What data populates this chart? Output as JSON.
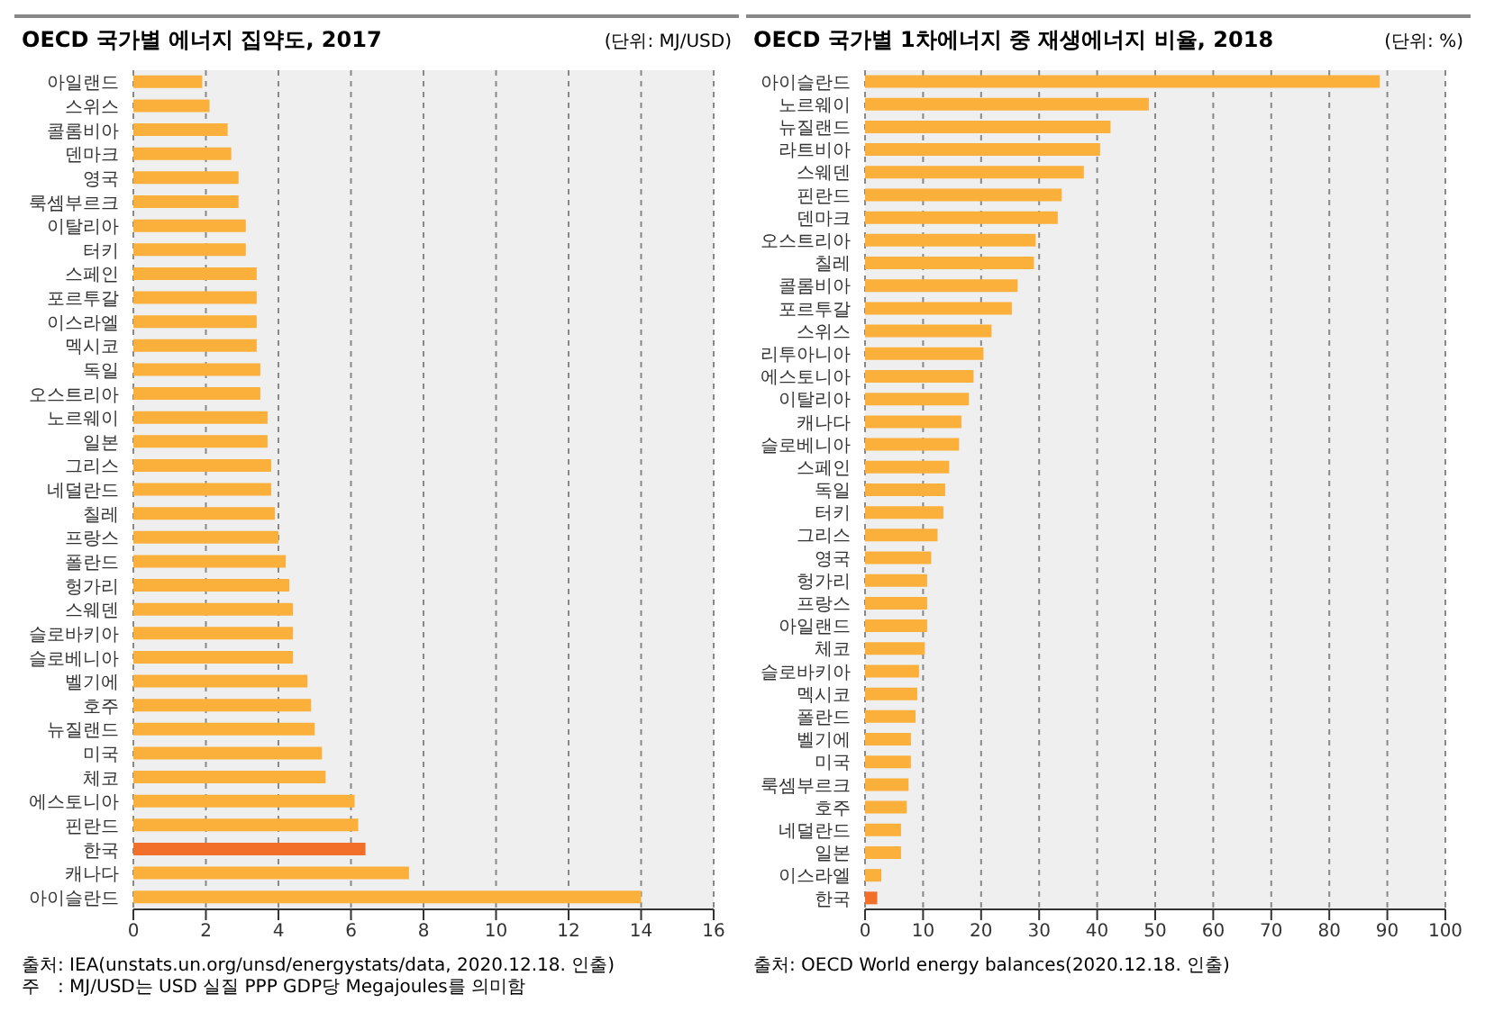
{
  "chart_data": [
    {
      "type": "bar",
      "orientation": "horizontal",
      "title": "OECD 국가별 에너지 집약도, 2017",
      "subtitle": "(단위: MJ/USD)",
      "categories": [
        "아일랜드",
        "스위스",
        "콜롬비아",
        "덴마크",
        "영국",
        "룩셈부르크",
        "이탈리아",
        "터키",
        "스페인",
        "포르투갈",
        "이스라엘",
        "멕시코",
        "독일",
        "오스트리아",
        "노르웨이",
        "일본",
        "그리스",
        "네덜란드",
        "칠레",
        "프랑스",
        "폴란드",
        "헝가리",
        "스웨덴",
        "슬로바키아",
        "슬로베니아",
        "벨기에",
        "호주",
        "뉴질랜드",
        "미국",
        "체코",
        "에스토니아",
        "핀란드",
        "한국",
        "캐나다",
        "아이슬란드"
      ],
      "values": [
        1.9,
        2.1,
        2.6,
        2.7,
        2.9,
        2.9,
        3.1,
        3.1,
        3.4,
        3.4,
        3.4,
        3.4,
        3.5,
        3.5,
        3.7,
        3.7,
        3.8,
        3.8,
        3.9,
        4.0,
        4.2,
        4.3,
        4.4,
        4.4,
        4.4,
        4.8,
        4.9,
        5.0,
        5.2,
        5.3,
        6.1,
        6.2,
        6.4,
        7.6,
        14.0
      ],
      "colors": [
        "#fbb03b",
        "#fbb03b",
        "#fbb03b",
        "#fbb03b",
        "#fbb03b",
        "#fbb03b",
        "#fbb03b",
        "#fbb03b",
        "#fbb03b",
        "#fbb03b",
        "#fbb03b",
        "#fbb03b",
        "#fbb03b",
        "#fbb03b",
        "#fbb03b",
        "#fbb03b",
        "#fbb03b",
        "#fbb03b",
        "#fbb03b",
        "#fbb03b",
        "#fbb03b",
        "#fbb03b",
        "#fbb03b",
        "#fbb03b",
        "#fbb03b",
        "#fbb03b",
        "#fbb03b",
        "#fbb03b",
        "#fbb03b",
        "#fbb03b",
        "#fbb03b",
        "#fbb03b",
        "#f26f2a",
        "#fbb03b",
        "#fbb03b"
      ],
      "xlim": [
        0,
        16
      ],
      "xticks": [
        0,
        2,
        4,
        6,
        8,
        10,
        12,
        14,
        16
      ],
      "grid": "x",
      "legend": false,
      "annotations": [
        "출처: IEA(unstats.un.org/unsd/energystats/data, 2020.12.18. 인출)",
        "주　: MJ/USD는 USD 실질 PPP GDP당 Megajoules를 의미함"
      ]
    },
    {
      "type": "bar",
      "orientation": "horizontal",
      "title": "OECD 국가별 1차에너지 중 재생에너지 비율, 2018",
      "subtitle": "(단위: %)",
      "categories": [
        "아이슬란드",
        "노르웨이",
        "뉴질랜드",
        "라트비아",
        "스웨덴",
        "핀란드",
        "덴마크",
        "오스트리아",
        "칠레",
        "콜롬비아",
        "포르투갈",
        "스위스",
        "리투아니아",
        "에스토니아",
        "이탈리아",
        "캐나다",
        "슬로베니아",
        "스페인",
        "독일",
        "터키",
        "그리스",
        "영국",
        "헝가리",
        "프랑스",
        "아일랜드",
        "체코",
        "슬로바키아",
        "멕시코",
        "폴란드",
        "벨기에",
        "미국",
        "룩셈부르크",
        "호주",
        "네덜란드",
        "일본",
        "이스라엘",
        "한국"
      ],
      "values": [
        88.7,
        48.9,
        42.3,
        40.5,
        37.7,
        33.9,
        33.2,
        29.4,
        29.1,
        26.3,
        25.3,
        21.8,
        20.4,
        18.7,
        17.9,
        16.6,
        16.2,
        14.5,
        13.8,
        13.5,
        12.5,
        11.4,
        10.7,
        10.7,
        10.7,
        10.3,
        9.3,
        9.0,
        8.7,
        7.9,
        7.9,
        7.5,
        7.2,
        6.2,
        6.2,
        2.8,
        2.1
      ],
      "colors": [
        "#fbb03b",
        "#fbb03b",
        "#fbb03b",
        "#fbb03b",
        "#fbb03b",
        "#fbb03b",
        "#fbb03b",
        "#fbb03b",
        "#fbb03b",
        "#fbb03b",
        "#fbb03b",
        "#fbb03b",
        "#fbb03b",
        "#fbb03b",
        "#fbb03b",
        "#fbb03b",
        "#fbb03b",
        "#fbb03b",
        "#fbb03b",
        "#fbb03b",
        "#fbb03b",
        "#fbb03b",
        "#fbb03b",
        "#fbb03b",
        "#fbb03b",
        "#fbb03b",
        "#fbb03b",
        "#fbb03b",
        "#fbb03b",
        "#fbb03b",
        "#fbb03b",
        "#fbb03b",
        "#fbb03b",
        "#fbb03b",
        "#fbb03b",
        "#fbb03b",
        "#f26f2a"
      ],
      "xlim": [
        0,
        100
      ],
      "xticks": [
        0,
        10,
        20,
        30,
        40,
        50,
        60,
        70,
        80,
        90,
        100
      ],
      "grid": "x",
      "legend": false,
      "annotations": [
        "출처: OECD World energy balances(2020.12.18. 인출)"
      ]
    }
  ]
}
